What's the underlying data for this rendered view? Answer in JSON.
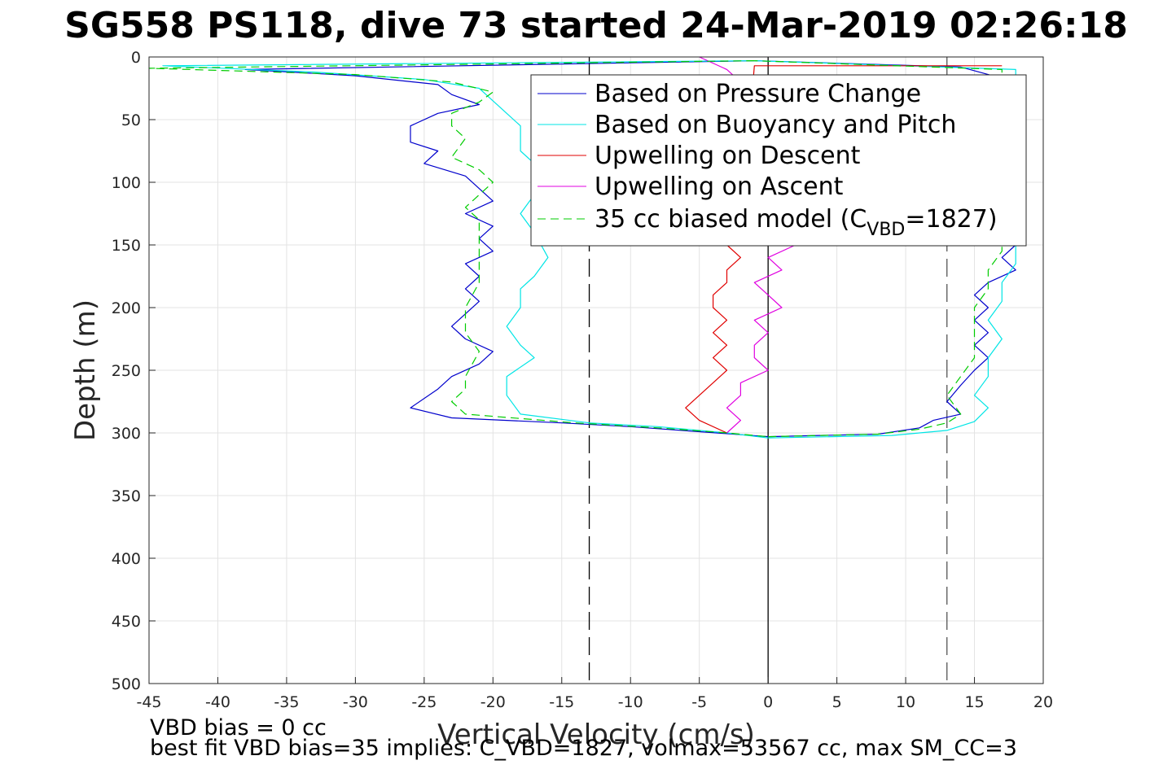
{
  "chart_data": {
    "type": "line",
    "title": "SG558 PS118, dive 73 started 24-Mar-2019 02:26:18",
    "xlabel": "Vertical Velocity (cm/s)",
    "ylabel": "Depth (m)",
    "xlim": [
      -45,
      20
    ],
    "ylim": [
      0,
      500
    ],
    "y_reversed": true,
    "grid": true,
    "x_ticks": [
      "-45",
      "-40",
      "-35",
      "-30",
      "-25",
      "-20",
      "-15",
      "-10",
      "-5",
      "0",
      "5",
      "10",
      "15",
      "20"
    ],
    "y_ticks": [
      "0",
      "50",
      "100",
      "150",
      "200",
      "250",
      "300",
      "350",
      "400",
      "450",
      "500"
    ],
    "reference_lines": [
      {
        "x": -13,
        "style": "dashed",
        "color": "#000000"
      },
      {
        "x": 0,
        "style": "solid",
        "color": "#000000"
      },
      {
        "x": 13,
        "style": "dashed",
        "color": "#555555"
      }
    ],
    "legend_position": "top-right (inside)",
    "legend": [
      {
        "label": "Based on Pressure Change",
        "color": "#0000cc",
        "style": "solid"
      },
      {
        "label": "Based on Buoyancy and Pitch",
        "color": "#00e5e5",
        "style": "solid"
      },
      {
        "label": "Upwelling on Descent",
        "color": "#e00000",
        "style": "solid"
      },
      {
        "label": "Upwelling on Ascent",
        "color": "#e000e0",
        "style": "solid"
      },
      {
        "label_main": "35 cc biased model (C",
        "label_sub": "VBD",
        "label_end": "=1827)",
        "color": "#00cc00",
        "style": "dashed"
      }
    ],
    "series": [
      {
        "name": "Based on Pressure Change",
        "color": "#0000cc",
        "style": "solid",
        "descent": [
          [
            -1,
            3
          ],
          [
            -38,
            10
          ],
          [
            -30,
            15
          ],
          [
            -24,
            22
          ],
          [
            -23,
            30
          ],
          [
            -21,
            38
          ],
          [
            -24,
            45
          ],
          [
            -26,
            55
          ],
          [
            -26,
            68
          ],
          [
            -24,
            75
          ],
          [
            -25,
            85
          ],
          [
            -22,
            95
          ],
          [
            -21,
            105
          ],
          [
            -20,
            115
          ],
          [
            -22,
            125
          ],
          [
            -20,
            135
          ],
          [
            -21,
            145
          ],
          [
            -20,
            155
          ],
          [
            -22,
            165
          ],
          [
            -21,
            175
          ],
          [
            -22,
            185
          ],
          [
            -21,
            195
          ],
          [
            -22,
            205
          ],
          [
            -23,
            215
          ],
          [
            -22,
            225
          ],
          [
            -20,
            235
          ],
          [
            -21,
            245
          ],
          [
            -23,
            255
          ],
          [
            -24,
            265
          ],
          [
            -26,
            280
          ],
          [
            -23,
            288
          ],
          [
            -15,
            292
          ],
          [
            -10,
            295
          ],
          [
            -5,
            299
          ],
          [
            0,
            303
          ]
        ],
        "ascent": [
          [
            0,
            303
          ],
          [
            8,
            301
          ],
          [
            11,
            296
          ],
          [
            12,
            290
          ],
          [
            14,
            285
          ],
          [
            13,
            275
          ],
          [
            14,
            262
          ],
          [
            15,
            250
          ],
          [
            16,
            240
          ],
          [
            15,
            230
          ],
          [
            16,
            220
          ],
          [
            15,
            210
          ],
          [
            16,
            200
          ],
          [
            15,
            190
          ],
          [
            16,
            180
          ],
          [
            18,
            170
          ],
          [
            17,
            160
          ],
          [
            18,
            150
          ],
          [
            17,
            140
          ],
          [
            18,
            130
          ],
          [
            18,
            120
          ],
          [
            17,
            110
          ],
          [
            17,
            80
          ],
          [
            17,
            40
          ],
          [
            18,
            20
          ],
          [
            14,
            8
          ],
          [
            -1,
            3
          ]
        ]
      },
      {
        "name": "Based on Buoyancy and Pitch",
        "color": "#00e5e5",
        "style": "solid",
        "descent": [
          [
            -1,
            3
          ],
          [
            -44,
            7
          ],
          [
            -33,
            12
          ],
          [
            -25,
            18
          ],
          [
            -21,
            25
          ],
          [
            -20,
            35
          ],
          [
            -19,
            45
          ],
          [
            -18,
            55
          ],
          [
            -18,
            75
          ],
          [
            -17,
            85
          ],
          [
            -16,
            95
          ],
          [
            -17,
            110
          ],
          [
            -18,
            125
          ],
          [
            -17,
            140
          ],
          [
            -16,
            160
          ],
          [
            -17,
            175
          ],
          [
            -18,
            185
          ],
          [
            -18,
            200
          ],
          [
            -19,
            215
          ],
          [
            -18,
            230
          ],
          [
            -17,
            240
          ],
          [
            -19,
            255
          ],
          [
            -19,
            270
          ],
          [
            -18,
            285
          ],
          [
            -13,
            292
          ],
          [
            -8,
            295
          ],
          [
            -3,
            300
          ],
          [
            0,
            304
          ]
        ],
        "ascent": [
          [
            0,
            304
          ],
          [
            9,
            302
          ],
          [
            13,
            298
          ],
          [
            15,
            291
          ],
          [
            16,
            280
          ],
          [
            15,
            270
          ],
          [
            16,
            255
          ],
          [
            16,
            240
          ],
          [
            17,
            225
          ],
          [
            16,
            210
          ],
          [
            17,
            195
          ],
          [
            17,
            180
          ],
          [
            18,
            165
          ],
          [
            18,
            150
          ],
          [
            18,
            130
          ],
          [
            18,
            110
          ],
          [
            18,
            80
          ],
          [
            18,
            50
          ],
          [
            18,
            25
          ],
          [
            18,
            10
          ],
          [
            -1,
            3
          ]
        ]
      },
      {
        "name": "Upwelling on Descent",
        "color": "#e00000",
        "style": "solid",
        "descent": [
          [
            17,
            7
          ],
          [
            -1,
            7
          ],
          [
            -2,
            140
          ],
          [
            -3,
            150
          ],
          [
            -2,
            160
          ],
          [
            -3,
            170
          ],
          [
            -3,
            180
          ],
          [
            -4,
            190
          ],
          [
            -4,
            200
          ],
          [
            -3,
            210
          ],
          [
            -4,
            220
          ],
          [
            -3,
            230
          ],
          [
            -4,
            240
          ],
          [
            -3,
            250
          ],
          [
            -4,
            260
          ],
          [
            -5,
            270
          ],
          [
            -6,
            280
          ],
          [
            -5,
            290
          ],
          [
            -3,
            300
          ]
        ]
      },
      {
        "name": "Upwelling on Ascent",
        "color": "#e000e0",
        "style": "solid",
        "ascent": [
          [
            -5,
            0
          ],
          [
            -3,
            10
          ],
          [
            -2,
            20
          ],
          [
            -1,
            40
          ],
          [
            -1,
            60
          ],
          [
            -2,
            80
          ],
          [
            -1,
            100
          ],
          [
            0,
            120
          ],
          [
            1,
            140
          ],
          [
            2,
            150
          ],
          [
            0,
            160
          ],
          [
            1,
            170
          ],
          [
            -1,
            180
          ],
          [
            0,
            190
          ],
          [
            1,
            200
          ],
          [
            -1,
            210
          ],
          [
            0,
            220
          ],
          [
            -1,
            230
          ],
          [
            -1,
            240
          ],
          [
            0,
            250
          ],
          [
            -2,
            260
          ],
          [
            -2,
            270
          ],
          [
            -3,
            280
          ],
          [
            -2,
            290
          ],
          [
            -3,
            300
          ]
        ]
      },
      {
        "name": "35 cc biased model",
        "color": "#00cc00",
        "style": "dashed",
        "descent": [
          [
            -1,
            3
          ],
          [
            -45,
            9
          ],
          [
            -30,
            14
          ],
          [
            -23,
            20
          ],
          [
            -20,
            28
          ],
          [
            -21,
            36
          ],
          [
            -23,
            45
          ],
          [
            -23,
            55
          ],
          [
            -22,
            65
          ],
          [
            -23,
            80
          ],
          [
            -21,
            90
          ],
          [
            -20,
            100
          ],
          [
            -21,
            110
          ],
          [
            -22,
            120
          ],
          [
            -21,
            130
          ],
          [
            -21,
            145
          ],
          [
            -21,
            160
          ],
          [
            -21,
            180
          ],
          [
            -22,
            200
          ],
          [
            -22,
            220
          ],
          [
            -21,
            235
          ],
          [
            -22,
            255
          ],
          [
            -22,
            265
          ],
          [
            -23,
            275
          ],
          [
            -22,
            285
          ],
          [
            -14,
            292
          ],
          [
            -8,
            296
          ],
          [
            -3,
            300
          ],
          [
            0,
            303
          ]
        ],
        "ascent": [
          [
            0,
            303
          ],
          [
            8,
            301
          ],
          [
            11,
            297
          ],
          [
            13,
            292
          ],
          [
            14,
            285
          ],
          [
            13,
            270
          ],
          [
            14,
            255
          ],
          [
            15,
            240
          ],
          [
            15,
            220
          ],
          [
            15,
            200
          ],
          [
            16,
            185
          ],
          [
            16,
            170
          ],
          [
            17,
            155
          ],
          [
            17,
            140
          ],
          [
            17,
            120
          ],
          [
            17,
            90
          ],
          [
            17,
            60
          ],
          [
            17,
            30
          ],
          [
            17,
            10
          ],
          [
            -1,
            3
          ]
        ]
      }
    ]
  },
  "notes": {
    "line1": "VBD bias = 0 cc",
    "line2": "best fit VBD bias=35 implies: C_VBD=1827, volmax=53567 cc, max SM_CC=3"
  }
}
